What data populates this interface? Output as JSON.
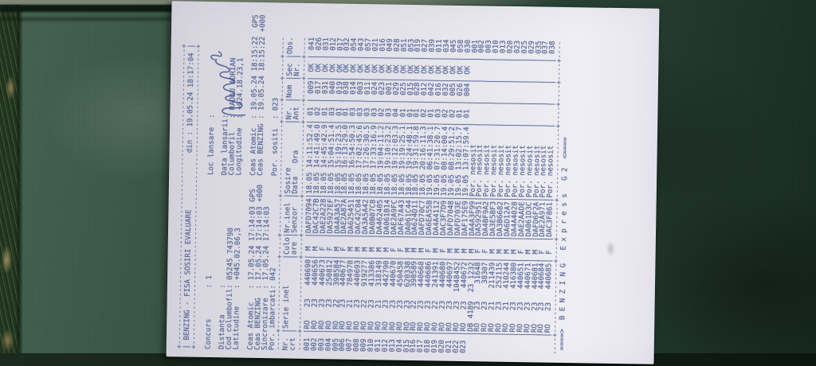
{
  "scene": {
    "description_colors": {
      "table_green": "#2f4a3c",
      "paper": "#e7e6ed",
      "ink_blue": "#5b6a99",
      "pen_blue": "#3d4c88"
    }
  },
  "document": {
    "title": "BENZING - FISA SOSIRI EVALUARE",
    "din_label": "din :",
    "printed_at": "19.05.24 18:17:04",
    "fields": [
      [
        "Concurs",
        "1",
        "Loc lansare",
        ""
      ],
      null,
      [
        "Distanta",
        "",
        "Data lansarii",
        ""
      ],
      [
        "Cod columbofil",
        "05245 743790",
        "Columbofil",
        "RADAU ADRIAN"
      ],
      [
        "Latitudine",
        "+045.02.06,3",
        "Longitudine",
        "+024.18.23,1"
      ],
      null,
      [
        "Ceas Atomic",
        "17.05.24 17:14:03 GPS ",
        "Ceas Atomic",
        "19.05.24 18:15:22  GPS"
      ],
      [
        "Ceas BENZING",
        "17.05.24 17:14:03 +000",
        "Ceas BENZING",
        "19.05.24 18:15:22 +000"
      ],
      [
        "Sincronizare",
        "17.05.24 17:14:03",
        "",
        ""
      ],
      [
        "Por. imbarcati",
        "042",
        "Por. sositi",
        "023"
      ]
    ],
    "table": {
      "head1": [
        "Nr.",
        "Serie inel",
        "Culo",
        "Nr.inel",
        "Sosire",
        "Nr.",
        "Nom",
        "Sec",
        "Obs."
      ],
      "head2": [
        "crt",
        "",
        "are",
        "Senzor",
        "Data   Ora",
        "Ant",
        "",
        "Nr.",
        ""
      ],
      "row_format": [
        "nr_crt",
        "tara",
        "an",
        "inel",
        "sex",
        "senzor",
        "sosire",
        "nr_ant",
        "nom",
        "sec",
        "obs"
      ],
      "rows": [
        [
          "001",
          "RO",
          "23",
          "440690",
          "M",
          "DAFD7094",
          "18.05 14:11:52.4",
          "01",
          "009",
          "OK",
          "041"
        ],
        [
          "002",
          "RO",
          "23",
          "440656",
          "M",
          "DAC42C7B",
          "18.05 14:41:49.0",
          "02",
          "017",
          "OK",
          "026"
        ],
        [
          "003",
          "RO",
          "23",
          "440673",
          "F",
          "DAE2A228",
          "18.05 14:45:42.9",
          "01",
          "031",
          "OK",
          "031"
        ],
        [
          "004",
          "RO",
          "23",
          "250812",
          "F",
          "DA5927EF",
          "18.05 15:04:51.4",
          "03",
          "040",
          "OK",
          "012"
        ],
        [
          "005",
          "RO",
          "22",
          "398584",
          "M",
          "DA4A3A57",
          "18.05 15:19:23.5",
          "01",
          "019",
          "OK",
          "017"
        ],
        [
          "006",
          "RO",
          "23",
          "440677",
          "F",
          "DAE2A87A",
          "18.05 16:13:29.0",
          "01",
          "038",
          "OK",
          "032"
        ],
        [
          "007",
          "RO",
          "21",
          "784978",
          "M",
          "DA625451",
          "18.05 16:54:50.3",
          "03",
          "014",
          "OK",
          "054"
        ],
        [
          "008",
          "RO",
          "23",
          "440693",
          "M",
          "DAC42C84",
          "18.05 17:02:45.6",
          "03",
          "003",
          "OK",
          "043"
        ],
        [
          "009",
          "RO",
          "22",
          "919277",
          "M",
          "DA3A5A42",
          "18.05 17:26:30.5",
          "03",
          "011",
          "OK",
          "057"
        ],
        [
          "010",
          "RO",
          "23",
          "413386",
          "M",
          "DA0B07C8",
          "18.05 17:33:16.9",
          "03",
          "024",
          "OK",
          "021"
        ],
        [
          "011",
          "RO",
          "21",
          "318149",
          "M",
          "DA462405",
          "18.05 19:04:11.2",
          "02",
          "023",
          "OK",
          "016"
        ],
        [
          "012",
          "RO",
          "23",
          "442790",
          "M",
          "DA061B14",
          "18.05 19:10:23.2",
          "03",
          "001",
          "OK",
          "049"
        ],
        [
          "013",
          "RO",
          "23",
          "440670",
          "F",
          "DAE2A9FC",
          "18.05 19:12:03.3",
          "04",
          "029",
          "OK",
          "028"
        ],
        [
          "014",
          "RO",
          "23",
          "450458",
          "F",
          "DAF67A43",
          "18.05 19:19:25.1",
          "01",
          "025",
          "OK",
          "051"
        ],
        [
          "015",
          "RO",
          "23",
          "620338",
          "M",
          "DA061C44",
          "18.05 19:24:48.1",
          "01",
          "015",
          "OK",
          "053"
        ],
        [
          "016",
          "RO",
          "22",
          "398589",
          "M",
          "DA624D11",
          "18.05 19:31:59.8",
          "01",
          "028",
          "OK",
          "019"
        ],
        [
          "017",
          "RO",
          "23",
          "440668",
          "M",
          "DAFD70C7",
          "18.05 20:16:11.3",
          "02",
          "012",
          "OK",
          "027"
        ],
        [
          "018",
          "RO",
          "23",
          "440686",
          "F",
          "DA6EA55B",
          "19.05 06:41:38.1",
          "01",
          "042",
          "OK",
          "039"
        ],
        [
          "019",
          "RO",
          "22",
          "241391",
          "M",
          "DA4A4112",
          "19.05 07:31:20.7",
          "03",
          "016",
          "OK",
          "011"
        ],
        [
          "020",
          "RO",
          "23",
          "440680",
          "F",
          "DAC3F7D9",
          "19.05 08:14:00.4",
          "02",
          "032",
          "OK",
          "034"
        ],
        [
          "021",
          "RO",
          "23",
          "440697",
          "M",
          "DAFD7048",
          "19.05 08:29:51.2",
          "02",
          "005",
          "OK",
          "045"
        ],
        [
          "022",
          "RO",
          "23",
          "1048452",
          "M",
          "DAFD703E",
          "19.05 13:02:15.7",
          "01",
          "026",
          "OK",
          "058"
        ],
        [
          "023",
          "RO",
          "23",
          "440672",
          "M",
          "DAF175E9",
          "19.05 13:07:59.4",
          "01",
          "004",
          "OK",
          "030"
        ],
        [
          "",
          "DB",
          "4189",
          "23 1232",
          "M",
          "DA4A3F99",
          "Por. nesosit",
          "",
          "",
          "",
          "001"
        ],
        [
          "",
          "RO",
          "23",
          "31648",
          "F",
          "DA592951",
          "Por. nesosit",
          "",
          "",
          "",
          "002"
        ],
        [
          "",
          "RO",
          "23",
          "38307",
          "F",
          "DA4BF9A2",
          "Por. nesosit",
          "",
          "",
          "",
          "003"
        ],
        [
          "",
          "RO",
          "21",
          "211439",
          "M",
          "DA3E5BF3",
          "Por. nesosit",
          "",
          "",
          "",
          "010"
        ],
        [
          "",
          "RO",
          "23",
          "252115",
          "M",
          "DA3B6682",
          "Por. nesosit",
          "",
          "",
          "",
          "013"
        ],
        [
          "",
          "RO",
          "21",
          "410244",
          "M",
          "DA6D12A7",
          "Por. nesosit",
          "",
          "",
          "",
          "020"
        ],
        [
          "",
          "RO",
          "23",
          "416380",
          "M",
          "DA4A4028",
          "Por. nesosit",
          "",
          "",
          "",
          "023"
        ],
        [
          "",
          "RO",
          "23",
          "440651",
          "F",
          "DAE2AADE",
          "Por. nesosit",
          "",
          "",
          "",
          "025"
        ],
        [
          "",
          "RO",
          "23",
          "440671",
          "M",
          "DA061D3C",
          "Por. nesosit",
          "",
          "",
          "",
          "029"
        ],
        [
          "",
          "RO",
          "23",
          "440681",
          "M",
          "DAFD6F2A",
          "Por. nesosit",
          "",
          "",
          "",
          "035"
        ],
        [
          "",
          "RO",
          "23",
          "440684",
          "F",
          "DAE2A971",
          "Por. nesosit",
          "",
          "",
          "",
          "037"
        ],
        [
          "",
          "RO",
          "23",
          "440685",
          "F",
          "DAC3F861",
          "Por. nesosit",
          "",
          "",
          "",
          "038"
        ]
      ]
    },
    "footer": "====>  B E N Z I N G   E x p r e s s   G 2  <===="
  }
}
